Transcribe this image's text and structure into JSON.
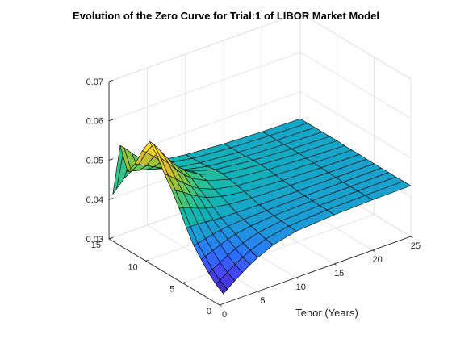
{
  "chart_data": {
    "type": "surface",
    "title": "Evolution of the Zero Curve for Trial:1 of LIBOR Market Model",
    "xlabel": "Tenor (Years)",
    "ylabel": "",
    "zlabel": "",
    "xlim": [
      0,
      25
    ],
    "ylim": [
      0,
      15
    ],
    "zlim": [
      0.03,
      0.07
    ],
    "x_ticks": [
      "0",
      "5",
      "10",
      "15",
      "20",
      "25"
    ],
    "y_ticks": [
      "0",
      "5",
      "10",
      "15"
    ],
    "z_ticks": [
      "0.03",
      "0.04",
      "0.05",
      "0.06",
      "0.07"
    ],
    "grid": true,
    "colormap": "parula",
    "colormap_stops": [
      "#3e26a8",
      "#4743f8",
      "#2d72fb",
      "#1e97db",
      "#0fb4b6",
      "#31c389",
      "#8cc43c",
      "#d7bb2e",
      "#fbd72b",
      "#f9fb15"
    ],
    "edge_color": "#000000",
    "tenor_years": [
      0.5,
      1,
      2,
      3,
      4,
      5,
      7,
      10,
      15,
      20,
      25
    ],
    "observation_years": [
      0,
      1,
      2,
      3,
      4,
      5,
      6,
      7,
      8,
      9,
      10,
      11,
      12,
      13,
      14,
      15
    ],
    "zero_rates": [
      [
        0.0325,
        0.0333,
        0.0348,
        0.0362,
        0.0375,
        0.0386,
        0.0404,
        0.0418,
        0.0425,
        0.0428,
        0.0429
      ],
      [
        0.0338,
        0.0345,
        0.0358,
        0.0371,
        0.0383,
        0.0393,
        0.0408,
        0.042,
        0.0426,
        0.0428,
        0.0429
      ],
      [
        0.0355,
        0.0361,
        0.0372,
        0.0383,
        0.0393,
        0.0401,
        0.0413,
        0.0422,
        0.0426,
        0.0428,
        0.0429
      ],
      [
        0.0378,
        0.0383,
        0.0391,
        0.0399,
        0.0406,
        0.0412,
        0.0419,
        0.0424,
        0.0427,
        0.0428,
        0.0429
      ],
      [
        0.0402,
        0.0405,
        0.041,
        0.0414,
        0.0418,
        0.0421,
        0.0424,
        0.0426,
        0.0428,
        0.0428,
        0.0429
      ],
      [
        0.0436,
        0.0437,
        0.0436,
        0.0434,
        0.0432,
        0.0431,
        0.043,
        0.0429,
        0.0429,
        0.0429,
        0.0429
      ],
      [
        0.0475,
        0.0473,
        0.0466,
        0.0458,
        0.0451,
        0.0446,
        0.044,
        0.0435,
        0.0432,
        0.043,
        0.0429
      ],
      [
        0.051,
        0.0506,
        0.0494,
        0.0481,
        0.047,
        0.046,
        0.0449,
        0.044,
        0.0434,
        0.0431,
        0.043
      ],
      [
        0.054,
        0.0533,
        0.0517,
        0.05,
        0.0485,
        0.0472,
        0.0456,
        0.0444,
        0.0436,
        0.0432,
        0.043
      ],
      [
        0.0575,
        0.0566,
        0.0545,
        0.0523,
        0.0503,
        0.0487,
        0.0466,
        0.0449,
        0.0439,
        0.0433,
        0.043
      ],
      [
        0.06,
        0.059,
        0.0564,
        0.0537,
        0.0514,
        0.0496,
        0.0471,
        0.0452,
        0.044,
        0.0434,
        0.0431
      ],
      [
        0.0565,
        0.0558,
        0.054,
        0.052,
        0.0503,
        0.0489,
        0.0468,
        0.0451,
        0.044,
        0.0434,
        0.0431
      ],
      [
        0.052,
        0.0516,
        0.0506,
        0.0496,
        0.0486,
        0.0476,
        0.0461,
        0.0448,
        0.0439,
        0.0434,
        0.0431
      ],
      [
        0.049,
        0.0488,
        0.0483,
        0.0478,
        0.0472,
        0.0466,
        0.0455,
        0.0446,
        0.0438,
        0.0434,
        0.0431
      ],
      [
        0.0545,
        0.0536,
        0.0515,
        0.0496,
        0.0481,
        0.047,
        0.0457,
        0.0446,
        0.0438,
        0.0434,
        0.0431
      ],
      [
        0.041,
        0.042,
        0.044,
        0.0452,
        0.0458,
        0.0458,
        0.0452,
        0.0444,
        0.0437,
        0.0433,
        0.0431
      ]
    ]
  }
}
